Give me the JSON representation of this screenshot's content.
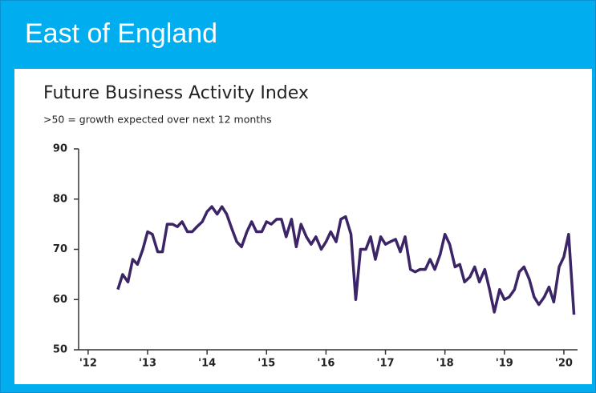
{
  "header": {
    "title": "East of England"
  },
  "chart_data": {
    "type": "line",
    "title": "Future Business Activity Index",
    "subtitle": ">50 = growth expected over next 12 months",
    "x": [
      2012.5,
      2012.58,
      2012.67,
      2012.75,
      2012.83,
      2012.92,
      2013.0,
      2013.08,
      2013.17,
      2013.25,
      2013.33,
      2013.42,
      2013.5,
      2013.58,
      2013.67,
      2013.75,
      2013.83,
      2013.92,
      2014.0,
      2014.08,
      2014.17,
      2014.25,
      2014.33,
      2014.42,
      2014.5,
      2014.58,
      2014.67,
      2014.75,
      2014.83,
      2014.92,
      2015.0,
      2015.08,
      2015.17,
      2015.25,
      2015.33,
      2015.42,
      2015.5,
      2015.58,
      2015.67,
      2015.75,
      2015.83,
      2015.92,
      2016.0,
      2016.08,
      2016.17,
      2016.25,
      2016.33,
      2016.42,
      2016.5,
      2016.58,
      2016.67,
      2016.75,
      2016.83,
      2016.92,
      2017.0,
      2017.08,
      2017.17,
      2017.25,
      2017.33,
      2017.42,
      2017.5,
      2017.58,
      2017.67,
      2017.75,
      2017.83,
      2017.92,
      2018.0,
      2018.08,
      2018.17,
      2018.25,
      2018.33,
      2018.42,
      2018.5,
      2018.58,
      2018.67,
      2018.75,
      2018.83,
      2018.92,
      2019.0,
      2019.08,
      2019.17,
      2019.25,
      2019.33,
      2019.42,
      2019.5,
      2019.58,
      2019.67,
      2019.75,
      2019.83,
      2019.92,
      2020.0,
      2020.08,
      2020.17
    ],
    "series": [
      {
        "color": "#3b2566",
        "values": [
          62,
          65,
          63.5,
          68,
          67,
          70,
          73.5,
          73,
          69.5,
          69.5,
          75,
          75,
          74.5,
          75.5,
          73.5,
          73.5,
          74.5,
          75.5,
          77.5,
          78.5,
          77,
          78.5,
          77,
          74,
          71.5,
          70.5,
          73.5,
          75.5,
          73.5,
          73.5,
          75.5,
          75,
          76,
          76,
          72.5,
          76,
          70.5,
          75,
          72.5,
          71,
          72.5,
          70,
          71.5,
          73.5,
          71.5,
          76,
          76.5,
          73,
          60,
          70,
          70,
          72.5,
          68,
          72.5,
          71,
          71.5,
          72,
          69.5,
          72.5,
          66,
          65.5,
          66,
          66,
          68,
          66,
          69,
          73,
          71,
          66.5,
          67,
          63.5,
          64.5,
          66.5,
          63.5,
          66,
          62,
          57.5,
          62,
          60,
          60.5,
          62,
          65.5,
          66.5,
          64,
          60.5,
          59,
          60.5,
          62.5,
          59.5,
          66.5,
          68.5,
          73,
          57
        ]
      }
    ],
    "xlim": [
      2011.84,
      2020.23
    ],
    "xticks": [
      {
        "value": 2012,
        "label": "'12"
      },
      {
        "value": 2013,
        "label": "'13"
      },
      {
        "value": 2014,
        "label": "'14"
      },
      {
        "value": 2015,
        "label": "'15"
      },
      {
        "value": 2016,
        "label": "'16"
      },
      {
        "value": 2017,
        "label": "'17"
      },
      {
        "value": 2018,
        "label": "'18"
      },
      {
        "value": 2019,
        "label": "'19"
      },
      {
        "value": 2020,
        "label": "'20"
      }
    ],
    "ylim": [
      50,
      90
    ],
    "yticks": [
      50,
      60,
      70,
      80,
      90
    ],
    "grid": false
  }
}
